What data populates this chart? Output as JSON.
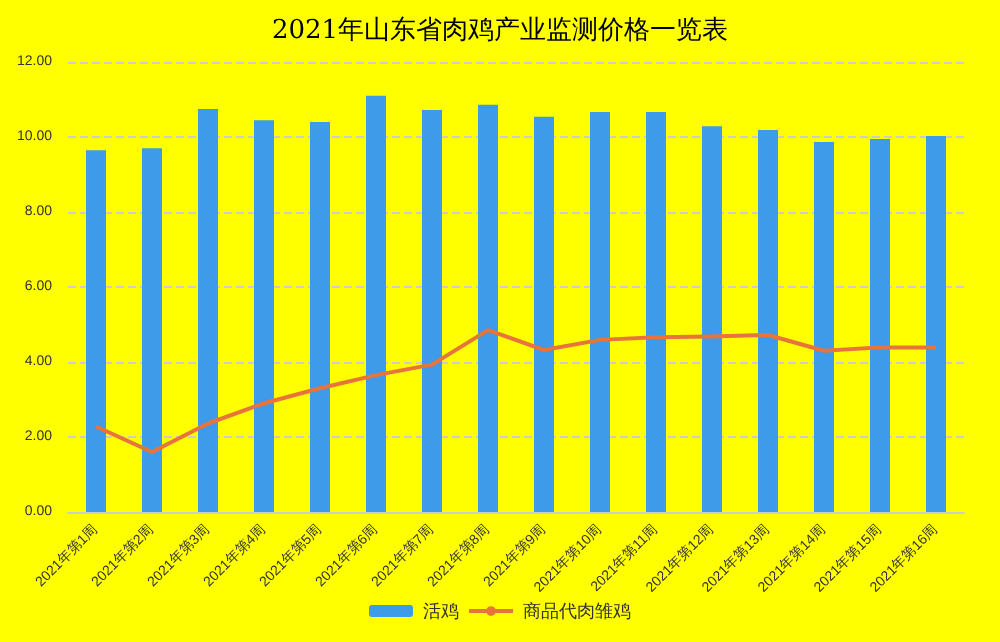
{
  "chart_data": {
    "type": "bar",
    "title": "2021年山东省肉鸡产业监测价格一览表",
    "categories": [
      "2021年第1周",
      "2021年第2周",
      "2021年第3周",
      "2021年第4周",
      "2021年第5周",
      "2021年第6周",
      "2021年第7周",
      "2021年第8周",
      "2021年第9周",
      "2021年第10周",
      "2021年第11周",
      "2021年第12周",
      "2021年第13周",
      "2021年第14周",
      "2021年第15周",
      "2021年第16周"
    ],
    "series": [
      {
        "name": "活鸡",
        "color": "#3d9be9",
        "values": [
          9.65,
          9.7,
          10.75,
          10.45,
          10.4,
          11.1,
          10.72,
          10.86,
          10.54,
          10.67,
          10.67,
          10.29,
          10.19,
          9.87,
          9.95,
          10.03
        ]
      },
      {
        "name": "商品代肉雏鸡",
        "type": "line",
        "color": "#e8743b",
        "values": [
          2.28,
          1.6,
          2.36,
          2.9,
          3.3,
          3.65,
          3.93,
          4.85,
          4.32,
          4.59,
          4.66,
          4.68,
          4.72,
          4.3,
          4.39,
          4.39
        ]
      }
    ],
    "ylim": [
      0,
      12
    ],
    "yticks": [
      {
        "value": 0,
        "label": "0.00"
      },
      {
        "value": 2,
        "label": "2.00"
      },
      {
        "value": 4,
        "label": "4.00"
      },
      {
        "value": 6,
        "label": "6.00"
      },
      {
        "value": 8,
        "label": "8.00"
      },
      {
        "value": 10,
        "label": "10.00"
      },
      {
        "value": 12,
        "label": "12.00"
      }
    ],
    "grid": "y",
    "legend": "bottom",
    "marker": "none",
    "line_style": "solid"
  }
}
